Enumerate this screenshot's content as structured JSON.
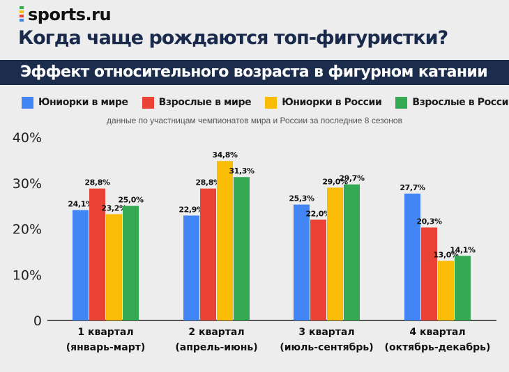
{
  "brand": {
    "name": "sports.ru"
  },
  "header": {
    "title": "Когда чаще рождаются топ-фигуристки?",
    "subtitle": "Эффект относительного возраста в фигурном катании"
  },
  "note": "данные по участницам чемпионатов мира и России за последние 8 сезонов",
  "colors": {
    "background": "#ededed",
    "subtitle_bar": "#1c2c4d",
    "blue": "#4285f4",
    "red": "#ea4335",
    "yellow": "#fbbc05",
    "green": "#34a853"
  },
  "chart_data": {
    "type": "bar",
    "title": "Когда чаще рождаются топ-фигуристки?",
    "subtitle": "Эффект относительного возраста в фигурном катании",
    "ylim": [
      0,
      40
    ],
    "yticks": [
      {
        "value": 0,
        "label": "0"
      },
      {
        "value": 10,
        "label": "10%"
      },
      {
        "value": 20,
        "label": "20%"
      },
      {
        "value": 30,
        "label": "30%"
      },
      {
        "value": 40,
        "label": "40%"
      }
    ],
    "grid": false,
    "legend_position": "top",
    "categories": [
      [
        "1 квартал",
        "(январь-март)"
      ],
      [
        "2 квартал",
        "(апрель-июнь)"
      ],
      [
        "3 квартал",
        "(июль-сентябрь)"
      ],
      [
        "4 квартал",
        "(октябрь-декабрь)"
      ]
    ],
    "series": [
      {
        "name": "Юниорки в мире",
        "color": "#4285f4",
        "values": [
          24.1,
          22.9,
          25.3,
          27.7
        ],
        "labels": [
          "24,1%",
          "22,9%",
          "25,3%",
          "27,7%"
        ]
      },
      {
        "name": "Взрослые в мире",
        "color": "#ea4335",
        "values": [
          28.8,
          28.8,
          22.0,
          20.3
        ],
        "labels": [
          "28,8%",
          "28,8%",
          "22,0%",
          "20,3%"
        ]
      },
      {
        "name": "Юниорки в России",
        "color": "#fbbc05",
        "values": [
          23.2,
          34.8,
          29.0,
          13.0
        ],
        "labels": [
          "23,2%",
          "34,8%",
          "29,0%",
          "13,0%"
        ]
      },
      {
        "name": "Взрослые в России",
        "color": "#34a853",
        "values": [
          25.0,
          31.3,
          29.7,
          14.1
        ],
        "labels": [
          "25,0%",
          "31,3%",
          "29,7%",
          "14,1%"
        ]
      }
    ]
  }
}
